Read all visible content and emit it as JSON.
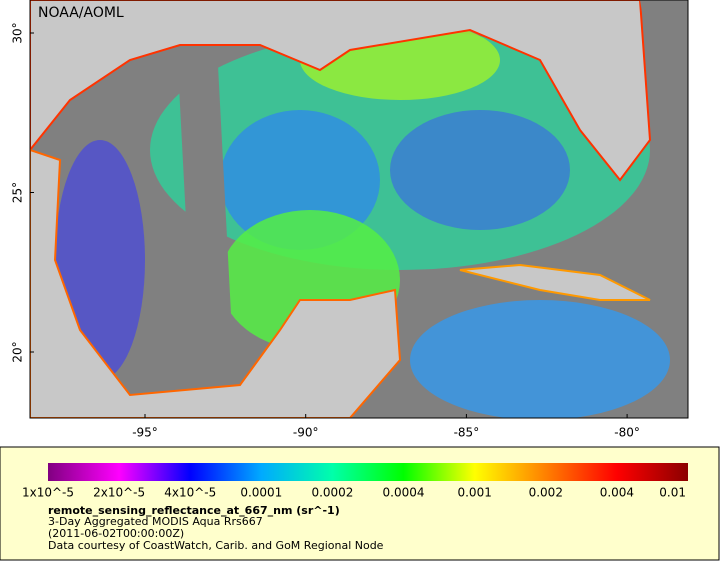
{
  "map": {
    "credit": "NOAA/AOML",
    "lat_labels": [
      "30°",
      "25°",
      "20°"
    ],
    "lon_labels": [
      "-95°",
      "-90°",
      "-85°",
      "-80°"
    ]
  },
  "colorbar": {
    "colors": [
      "#800080",
      "#ff00ff",
      "#0000ff",
      "#00aaff",
      "#00ffaa",
      "#00ff00",
      "#ffff00",
      "#ff8000",
      "#ff0000",
      "#8b0000"
    ],
    "tick_labels": [
      "1x10^-5",
      "2x10^-5",
      "4x10^-5",
      "0.0001",
      "0.0002",
      "0.0004",
      "0.001",
      "0.002",
      "0.004",
      "0.01"
    ]
  },
  "caption": {
    "variable": "remote_sensing_reflectance_at_667_nm (sr^-1)",
    "dataset": "3-Day Aggregated MODIS Aqua Rrs667",
    "time": "(2011-06-02T00:00:00Z)",
    "source": "Data courtesy of CoastWatch, Carib. and GoM Regional Node"
  }
}
